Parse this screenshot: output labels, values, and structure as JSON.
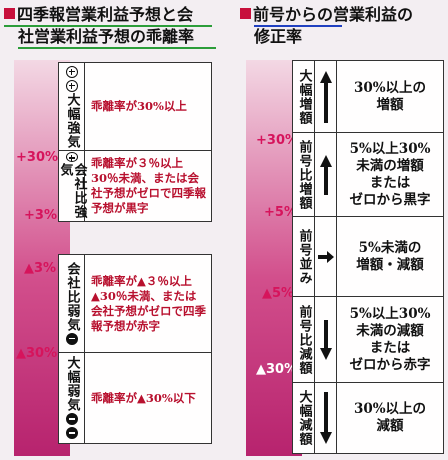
{
  "left": {
    "title_line1": "四季報営業利益予想と会",
    "title_line2": "社営業利益予想の乖離率",
    "pct_labels": [
      "+30%",
      "+3%",
      "▲3%",
      "▲30%"
    ],
    "rows": [
      {
        "label": "大幅強気",
        "desc": "乖離率が30%以上"
      },
      {
        "label": "会社比強気",
        "desc": "乖離率が３％以上30％未満、または会社予想がゼロで四季報予想が黒字"
      },
      {
        "label": "会社比弱気",
        "desc": "乖離率が▲３％以上▲30％未満、または会社予想がゼロで四季報予想が赤字"
      },
      {
        "label": "大幅弱気",
        "desc": "乖離率が▲30%以下"
      }
    ]
  },
  "right": {
    "title_line1": "前号からの営業利益の",
    "title_line2": "修正率",
    "pct_labels": [
      "+30%",
      "+5%",
      "▲5%",
      "▲30%"
    ],
    "rows": [
      {
        "label": "大幅増額",
        "arrow": "up",
        "desc_lines": [
          "30%以上の",
          "増額"
        ]
      },
      {
        "label": "前号比増額",
        "arrow": "up",
        "desc_lines": [
          "5%以上30%",
          "未満の増額",
          "または",
          "ゼロから黒字"
        ]
      },
      {
        "label": "前号並み",
        "arrow": "right",
        "desc_lines": [
          "5%未満の",
          "増額・減額"
        ]
      },
      {
        "label": "前号比減額",
        "arrow": "down",
        "desc_lines": [
          "5%以上30%",
          "未満の減額",
          "または",
          "ゼロから赤字"
        ]
      },
      {
        "label": "大幅減額",
        "arrow": "down",
        "desc_lines": [
          "30%以上の",
          "減額"
        ]
      }
    ]
  }
}
